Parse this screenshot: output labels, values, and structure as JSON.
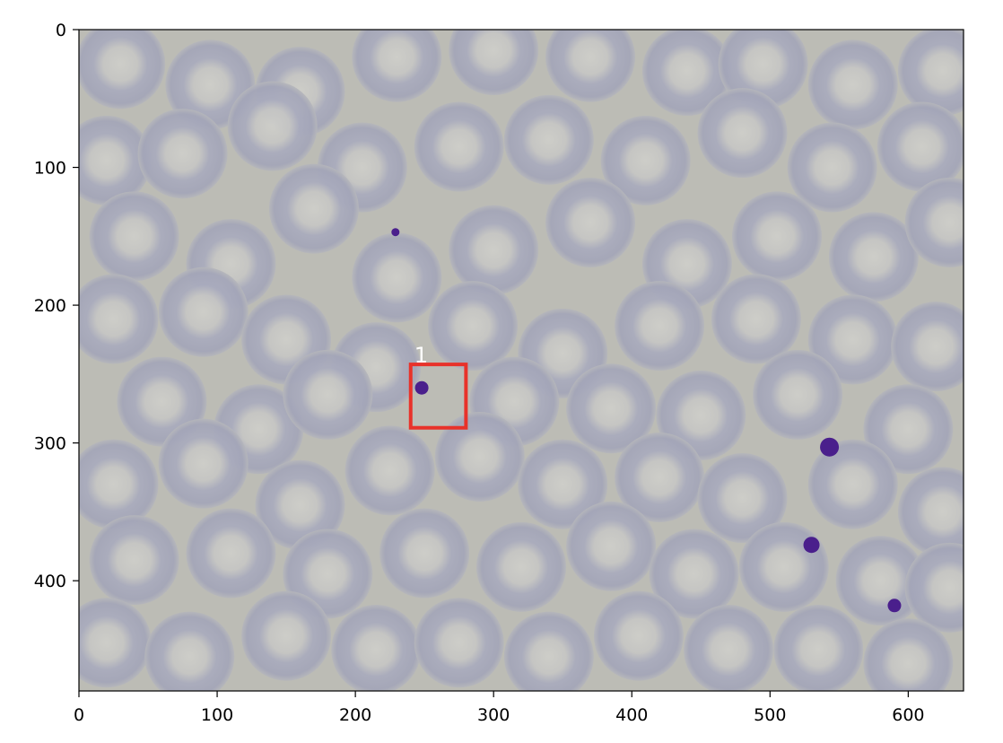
{
  "image": {
    "width": 640,
    "height": 480,
    "background_color": "#bcbcb5",
    "cell_color": "#a6a8bb",
    "cell_center_color": "#c7c7c3",
    "stain_color": "#4a1f8c"
  },
  "axes": {
    "x_ticks": [
      0,
      100,
      200,
      300,
      400,
      500,
      600
    ],
    "y_ticks": [
      0,
      100,
      200,
      300,
      400
    ],
    "xlim": [
      0,
      640
    ],
    "ylim": [
      480,
      0
    ]
  },
  "annotations": [
    {
      "label": "1",
      "color": "#e8322a",
      "x0": 240,
      "y0": 243,
      "x1": 280,
      "y1": 289
    }
  ],
  "cells": [
    [
      30,
      25
    ],
    [
      95,
      40
    ],
    [
      160,
      45
    ],
    [
      230,
      20
    ],
    [
      300,
      15
    ],
    [
      370,
      20
    ],
    [
      440,
      30
    ],
    [
      495,
      25
    ],
    [
      560,
      40
    ],
    [
      625,
      30
    ],
    [
      20,
      95
    ],
    [
      75,
      90
    ],
    [
      140,
      70
    ],
    [
      205,
      100
    ],
    [
      275,
      85
    ],
    [
      340,
      80
    ],
    [
      410,
      95
    ],
    [
      480,
      75
    ],
    [
      545,
      100
    ],
    [
      610,
      85
    ],
    [
      40,
      150
    ],
    [
      110,
      170
    ],
    [
      170,
      130
    ],
    [
      230,
      180
    ],
    [
      300,
      160
    ],
    [
      370,
      140
    ],
    [
      440,
      170
    ],
    [
      505,
      150
    ],
    [
      575,
      165
    ],
    [
      630,
      140
    ],
    [
      25,
      210
    ],
    [
      90,
      205
    ],
    [
      150,
      225
    ],
    [
      215,
      245
    ],
    [
      285,
      215
    ],
    [
      350,
      235
    ],
    [
      420,
      215
    ],
    [
      490,
      210
    ],
    [
      560,
      225
    ],
    [
      620,
      230
    ],
    [
      60,
      270
    ],
    [
      130,
      290
    ],
    [
      180,
      265
    ],
    [
      315,
      270
    ],
    [
      385,
      275
    ],
    [
      450,
      280
    ],
    [
      520,
      265
    ],
    [
      600,
      290
    ],
    [
      25,
      330
    ],
    [
      90,
      315
    ],
    [
      160,
      345
    ],
    [
      225,
      320
    ],
    [
      290,
      310
    ],
    [
      350,
      330
    ],
    [
      420,
      325
    ],
    [
      480,
      340
    ],
    [
      560,
      330
    ],
    [
      625,
      350
    ],
    [
      40,
      385
    ],
    [
      110,
      380
    ],
    [
      180,
      395
    ],
    [
      250,
      380
    ],
    [
      320,
      390
    ],
    [
      385,
      375
    ],
    [
      445,
      395
    ],
    [
      510,
      390
    ],
    [
      580,
      400
    ],
    [
      630,
      405
    ],
    [
      20,
      445
    ],
    [
      80,
      455
    ],
    [
      150,
      440
    ],
    [
      215,
      450
    ],
    [
      275,
      445
    ],
    [
      340,
      455
    ],
    [
      405,
      440
    ],
    [
      470,
      450
    ],
    [
      535,
      450
    ],
    [
      600,
      460
    ]
  ],
  "stains": [
    [
      229,
      147,
      3
    ],
    [
      543,
      303,
      7
    ],
    [
      530,
      374,
      6
    ],
    [
      590,
      418,
      5
    ],
    [
      248,
      260,
      5
    ]
  ]
}
